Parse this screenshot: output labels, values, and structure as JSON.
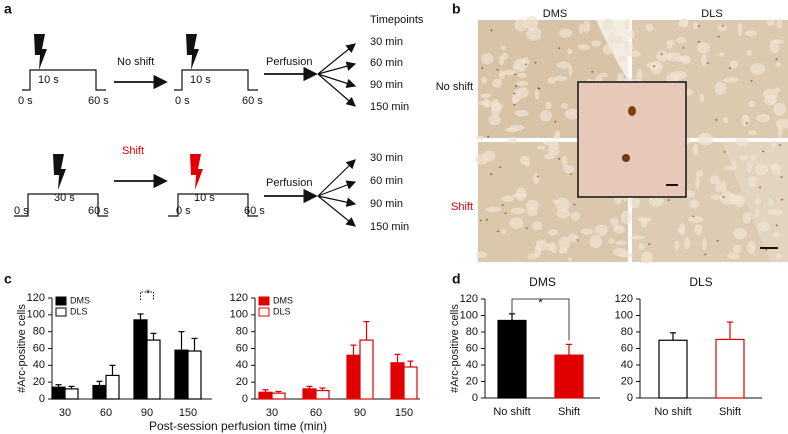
{
  "panel_labels": [
    "a",
    "b",
    "c",
    "d"
  ],
  "panel_a": {
    "timepoints_title": "Timepoints",
    "rows": [
      {
        "first": {
          "stim": "10 s",
          "start": "0 s",
          "end": "60 s"
        },
        "shift": "No shift",
        "second": {
          "stim": "10 s",
          "start": "0 s",
          "end": "60 s"
        },
        "perfusion": "Perfusion",
        "timepoints": [
          "30 min",
          "60 min",
          "90 min",
          "150 min"
        ]
      },
      {
        "first": {
          "stim": "30 s",
          "start": "0 s",
          "end": "60 s"
        },
        "shift": "Shift",
        "second": {
          "stim": "10 s",
          "start": "0 s",
          "end": "60 s"
        },
        "perfusion": "Perfusion",
        "timepoints": [
          "30 min",
          "60 min",
          "90 min",
          "150 min"
        ]
      }
    ]
  },
  "panel_b": {
    "columns": [
      "DMS",
      "DLS"
    ],
    "rows": [
      "No shift",
      "Shift"
    ]
  },
  "chart_data": [
    {
      "type": "bar",
      "ylabel": "#Arc-positive cells",
      "xlabel": "Post-session perfusion time (min)",
      "categories": [
        "30",
        "60",
        "90",
        "150"
      ],
      "ylim": [
        0,
        120
      ],
      "yticks": [
        0,
        20,
        40,
        60,
        80,
        100,
        120
      ],
      "legend": "upper left",
      "annotation": "*",
      "series": [
        {
          "name": "DMS",
          "color": "#000000",
          "edgecolor": "#000000",
          "values": [
            14,
            16,
            94,
            58
          ],
          "errors": [
            3,
            5,
            7,
            22
          ]
        },
        {
          "name": "DLS",
          "color": "#ffffff",
          "edgecolor": "#000000",
          "values": [
            12,
            28,
            70,
            57
          ],
          "errors": [
            3,
            12,
            8,
            15
          ]
        }
      ]
    },
    {
      "type": "bar",
      "categories": [
        "30",
        "60",
        "90",
        "150"
      ],
      "ylim": [
        0,
        120
      ],
      "yticks": [
        0,
        20,
        40,
        60,
        80,
        100,
        120
      ],
      "legend": "upper left",
      "series": [
        {
          "name": "DMS",
          "color": "#e00000",
          "edgecolor": "#e00000",
          "values": [
            8,
            12,
            52,
            43
          ],
          "errors": [
            3,
            3,
            12,
            10
          ]
        },
        {
          "name": "DLS",
          "color": "#ffffff",
          "edgecolor": "#e00000",
          "values": [
            7,
            10,
            70,
            38
          ],
          "errors": [
            2,
            3,
            22,
            7
          ]
        }
      ]
    },
    {
      "type": "bar",
      "title": "DMS",
      "ylabel": "#Arc-positive cells",
      "categories": [
        "No shift",
        "Shift"
      ],
      "ylim": [
        0,
        120
      ],
      "yticks": [
        0,
        20,
        40,
        60,
        80,
        100,
        120
      ],
      "annotation": "*",
      "values": [
        94,
        52
      ],
      "errors": [
        8,
        13
      ],
      "colors": [
        "#000000",
        "#e00000"
      ],
      "edgecolors": [
        "#000000",
        "#e00000"
      ]
    },
    {
      "type": "bar",
      "title": "DLS",
      "categories": [
        "No shift",
        "Shift"
      ],
      "ylim": [
        0,
        120
      ],
      "yticks": [
        0,
        20,
        40,
        60,
        80,
        100,
        120
      ],
      "values": [
        70,
        71
      ],
      "errors": [
        9,
        21
      ],
      "colors": [
        "#ffffff",
        "#ffffff"
      ],
      "edgecolors": [
        "#000000",
        "#e00000"
      ]
    }
  ]
}
